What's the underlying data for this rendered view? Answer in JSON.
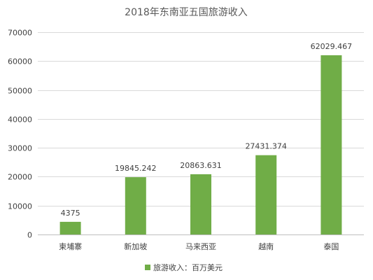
{
  "chart_data": {
    "type": "bar",
    "title": "2018年东南亚五国旅游收入",
    "categories": [
      "柬埔寨",
      "新加坡",
      "马来西亚",
      "越南",
      "泰国"
    ],
    "series": [
      {
        "name": "旅游收入：百万美元",
        "values": [
          4375,
          19845.242,
          20863.631,
          27431.374,
          62029.467
        ],
        "labels": [
          "4375",
          "19845.242",
          "20863.631",
          "27431.374",
          "62029.467"
        ]
      }
    ],
    "yticks": [
      "0",
      "10000",
      "20000",
      "30000",
      "40000",
      "50000",
      "60000",
      "70000"
    ],
    "ylim": [
      0,
      70000
    ],
    "grid": true,
    "legend": "bottom",
    "bar_color": "#70AD47"
  }
}
